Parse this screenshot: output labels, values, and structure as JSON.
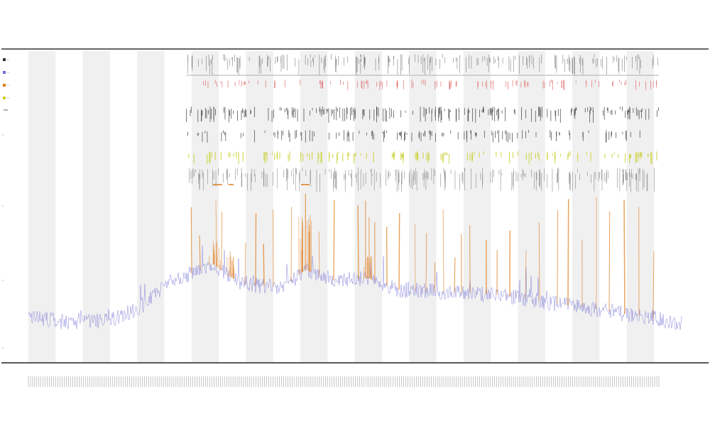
{
  "chart_data": {
    "type": "line",
    "title": "",
    "subtitle_1": "",
    "subtitle_2": "",
    "xlabel": "",
    "ylabel": "",
    "bands": 12,
    "series": [
      {
        "role": "coverage",
        "color": "#6b6bd6"
      },
      {
        "role": "highlight",
        "color": "#e07b1a"
      }
    ],
    "tracks": [
      {
        "role": "top-ticks",
        "color": "#555555"
      },
      {
        "role": "red-ticks",
        "color": "#d94040"
      },
      {
        "role": "black-ticks-1",
        "color": "#222222"
      },
      {
        "role": "black-ticks-2",
        "color": "#222222"
      },
      {
        "role": "yellow-ticks",
        "color": "#c8cf2a"
      },
      {
        "role": "gray-ticks",
        "color": "#666666"
      }
    ],
    "colors": {
      "band": "#f0f0f0",
      "axis": "#333333"
    }
  }
}
